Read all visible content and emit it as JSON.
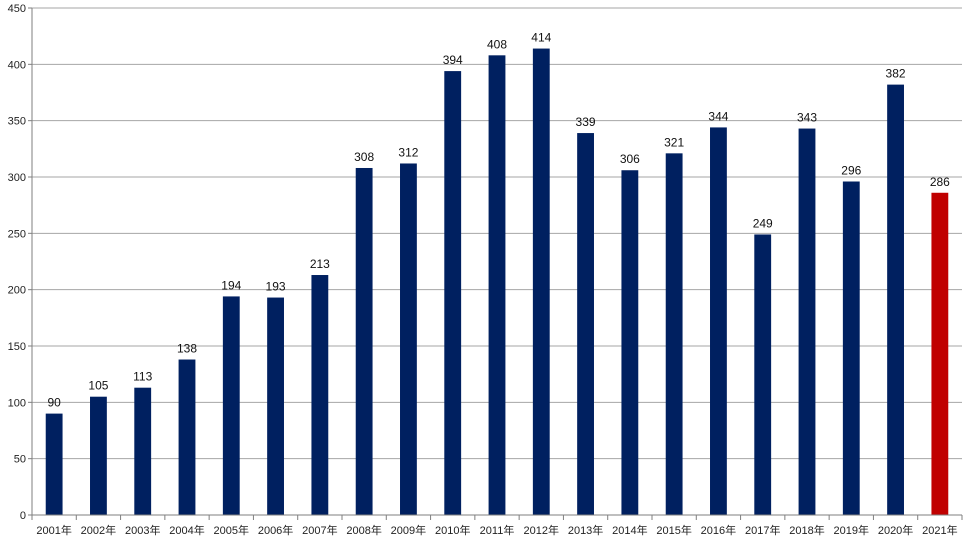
{
  "chart_data": {
    "type": "bar",
    "title": "",
    "xlabel": "",
    "ylabel": "",
    "ylim": [
      0,
      450
    ],
    "yticks": [
      0,
      50,
      100,
      150,
      200,
      250,
      300,
      350,
      400,
      450
    ],
    "grid": true,
    "categories": [
      "2001年",
      "2002年",
      "2003年",
      "2004年",
      "2005年",
      "2006年",
      "2007年",
      "2008年",
      "2009年",
      "2010年",
      "2011年",
      "2012年",
      "2013年",
      "2014年",
      "2015年",
      "2016年",
      "2017年",
      "2018年",
      "2019年",
      "2020年",
      "2021年"
    ],
    "values": [
      90,
      105,
      113,
      138,
      194,
      193,
      213,
      308,
      312,
      394,
      408,
      414,
      339,
      306,
      321,
      344,
      249,
      343,
      296,
      382,
      286
    ],
    "colors": {
      "bar": "#002060",
      "highlight": "#c00000",
      "grid": "#a6a6a6",
      "axis": "#7f7f7f"
    },
    "highlight_index": 20
  }
}
